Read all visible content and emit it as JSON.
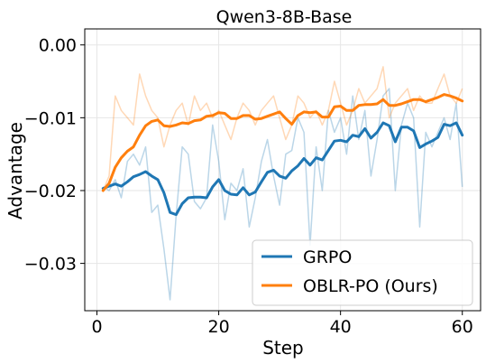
{
  "chart_data": {
    "type": "line",
    "title": "Qwen3-8B-Base",
    "xlabel": "Step",
    "ylabel": "Advantage",
    "xlim": [
      -2,
      63
    ],
    "ylim": [
      -0.0365,
      0.0022
    ],
    "xticks": [
      0,
      20,
      40,
      60
    ],
    "xtick_labels": [
      "0",
      "20",
      "40",
      "60"
    ],
    "yticks": [
      0.0,
      -0.01,
      -0.02,
      -0.03
    ],
    "ytick_labels": [
      "0.00",
      "−0.01",
      "−0.02",
      "−0.03"
    ],
    "grid": true,
    "legend_position": "lower-right",
    "x": [
      1,
      2,
      3,
      4,
      5,
      6,
      7,
      8,
      9,
      10,
      11,
      12,
      13,
      14,
      15,
      16,
      17,
      18,
      19,
      20,
      21,
      22,
      23,
      24,
      25,
      26,
      27,
      28,
      29,
      30,
      31,
      32,
      33,
      34,
      35,
      36,
      37,
      38,
      39,
      40,
      41,
      42,
      43,
      44,
      45,
      46,
      47,
      48,
      49,
      50,
      51,
      52,
      53,
      54,
      55,
      56,
      57,
      58,
      59,
      60
    ],
    "series": [
      {
        "name": "GRPO",
        "color": "#1f77b4",
        "smoothed": [
          -0.0197,
          -0.0194,
          -0.0191,
          -0.0194,
          -0.0188,
          -0.0181,
          -0.0178,
          -0.0174,
          -0.018,
          -0.0185,
          -0.0203,
          -0.023,
          -0.0233,
          -0.0218,
          -0.021,
          -0.0209,
          -0.0209,
          -0.021,
          -0.0195,
          -0.0185,
          -0.02,
          -0.0205,
          -0.0206,
          -0.0196,
          -0.0206,
          -0.0202,
          -0.0188,
          -0.0175,
          -0.0172,
          -0.018,
          -0.0183,
          -0.0173,
          -0.0166,
          -0.0156,
          -0.0165,
          -0.0155,
          -0.0158,
          -0.0145,
          -0.0132,
          -0.0131,
          -0.0133,
          -0.0124,
          -0.0126,
          -0.0115,
          -0.0128,
          -0.012,
          -0.0107,
          -0.0111,
          -0.0133,
          -0.0113,
          -0.0113,
          -0.0118,
          -0.0141,
          -0.0136,
          -0.0132,
          -0.0127,
          -0.0109,
          -0.0111,
          -0.0107,
          -0.0124
        ],
        "raw": [
          -0.0195,
          -0.02,
          -0.0185,
          -0.021,
          -0.016,
          -0.015,
          -0.0165,
          -0.014,
          -0.023,
          -0.022,
          -0.028,
          -0.035,
          -0.0235,
          -0.014,
          -0.015,
          -0.0215,
          -0.0225,
          -0.021,
          -0.011,
          -0.016,
          -0.024,
          -0.019,
          -0.02,
          -0.017,
          -0.025,
          -0.021,
          -0.016,
          -0.013,
          -0.018,
          -0.022,
          -0.015,
          -0.0145,
          -0.01,
          -0.012,
          -0.0275,
          -0.014,
          -0.02,
          -0.009,
          -0.012,
          -0.01,
          -0.015,
          -0.007,
          -0.013,
          -0.009,
          -0.018,
          -0.013,
          -0.007,
          -0.006,
          -0.02,
          -0.011,
          -0.008,
          -0.01,
          -0.025,
          -0.012,
          -0.014,
          -0.012,
          -0.01,
          -0.013,
          -0.008,
          -0.0195
        ]
      },
      {
        "name": "OBLR-PO (Ours)",
        "color": "#ff7f0e",
        "smoothed": [
          -0.02,
          -0.019,
          -0.0168,
          -0.0155,
          -0.0146,
          -0.014,
          -0.0124,
          -0.0111,
          -0.0105,
          -0.0103,
          -0.0111,
          -0.0112,
          -0.011,
          -0.0107,
          -0.0108,
          -0.0104,
          -0.0103,
          -0.0098,
          -0.0097,
          -0.0093,
          -0.0094,
          -0.0101,
          -0.0101,
          -0.0097,
          -0.0097,
          -0.0102,
          -0.0101,
          -0.0098,
          -0.0095,
          -0.0092,
          -0.0101,
          -0.0109,
          -0.0097,
          -0.0092,
          -0.0093,
          -0.0092,
          -0.0099,
          -0.0099,
          -0.0085,
          -0.0084,
          -0.009,
          -0.009,
          -0.0083,
          -0.0082,
          -0.0082,
          -0.0081,
          -0.0075,
          -0.0083,
          -0.0083,
          -0.0081,
          -0.0078,
          -0.0075,
          -0.0075,
          -0.0078,
          -0.0075,
          -0.0072,
          -0.0068,
          -0.007,
          -0.0073,
          -0.0077
        ],
        "raw": [
          -0.02,
          -0.018,
          -0.007,
          -0.009,
          -0.01,
          -0.011,
          -0.004,
          -0.007,
          -0.009,
          -0.01,
          -0.014,
          -0.011,
          -0.009,
          -0.008,
          -0.011,
          -0.007,
          -0.009,
          -0.008,
          -0.01,
          -0.009,
          -0.011,
          -0.013,
          -0.01,
          -0.008,
          -0.009,
          -0.011,
          -0.009,
          -0.008,
          -0.007,
          -0.01,
          -0.013,
          -0.011,
          -0.007,
          -0.008,
          -0.01,
          -0.009,
          -0.011,
          -0.009,
          -0.005,
          -0.008,
          -0.011,
          -0.009,
          -0.006,
          -0.008,
          -0.007,
          -0.006,
          -0.003,
          -0.01,
          -0.008,
          -0.007,
          -0.006,
          -0.009,
          -0.007,
          -0.008,
          -0.008,
          -0.006,
          -0.004,
          -0.007,
          -0.008,
          -0.006
        ]
      }
    ]
  }
}
